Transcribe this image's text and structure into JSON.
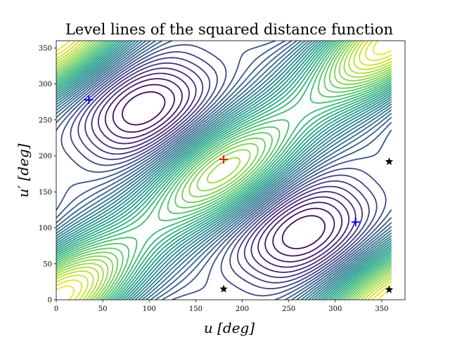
{
  "chart_data": {
    "type": "contour",
    "title": "Level lines of the squared distance function",
    "xlabel": "u [deg]",
    "ylabel": "u′ [deg]",
    "xlim": [
      0,
      375
    ],
    "ylim": [
      0,
      360
    ],
    "xticks": [
      "0",
      "50",
      "100",
      "150",
      "200",
      "250",
      "300",
      "350"
    ],
    "yticks": [
      "0",
      "50",
      "100",
      "150",
      "200",
      "250",
      "300",
      "350"
    ],
    "grid": false,
    "colormap": "viridis",
    "contour_levels": 40,
    "markers": [
      {
        "symbol": "+",
        "color": "#ff0000",
        "x": 180,
        "y": 195
      },
      {
        "symbol": "+",
        "color": "#0000ff",
        "x": 35,
        "y": 278
      },
      {
        "symbol": "+",
        "color": "#0000ff",
        "x": 322,
        "y": 108
      },
      {
        "symbol": "star",
        "color": "#000000",
        "x": 180,
        "y": 15
      },
      {
        "symbol": "star",
        "color": "#000000",
        "x": 358,
        "y": 192
      },
      {
        "symbol": "star",
        "color": "#000000",
        "x": 358,
        "y": 14
      }
    ]
  }
}
